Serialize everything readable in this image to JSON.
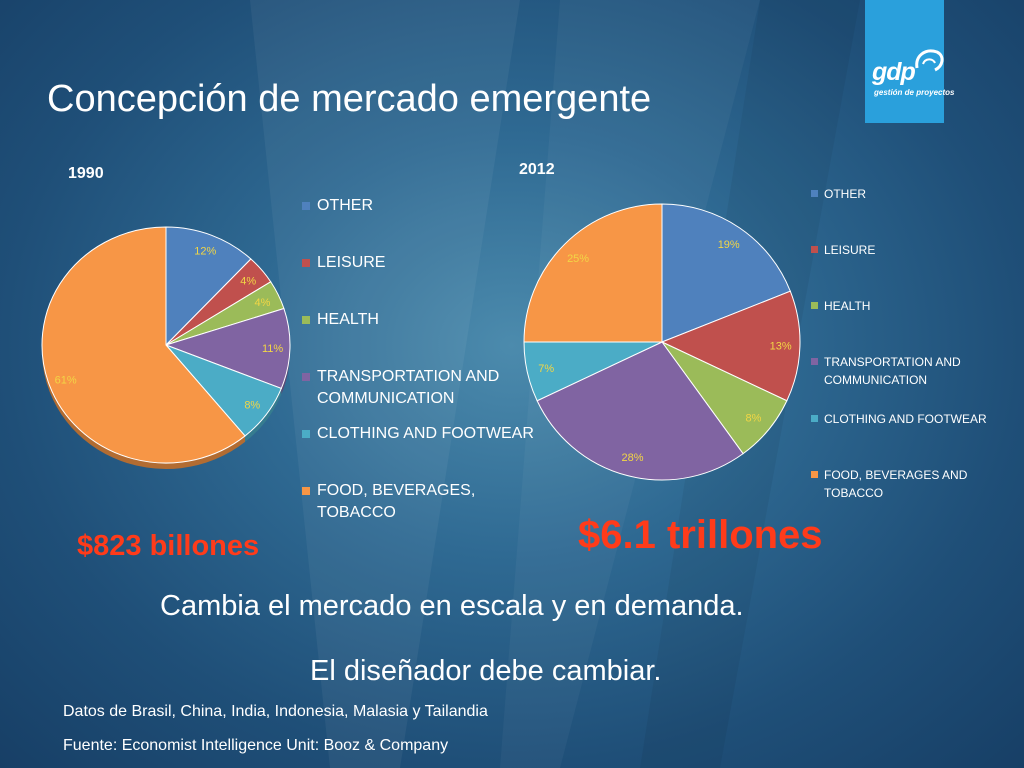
{
  "slide": {
    "title": "Concepción de mercado emergente",
    "logo": {
      "word": "gdp",
      "subtitle": "gestión de proyectos"
    },
    "total_1990": "$823 billones",
    "total_2012": "$6.1 trillones",
    "tagline_1": "Cambia el mercado en escala y en demanda.",
    "tagline_2": "El diseñador debe cambiar.",
    "note": "Datos de Brasil, China, India, Indonesia, Malasia y Tailandia",
    "source": "Fuente: Economist Intelligence Unit: Booz & Company"
  },
  "chart_data": [
    {
      "type": "pie",
      "title": "1990",
      "categories": [
        "OTHER",
        "LEISURE",
        "HEALTH",
        "TRANSPORTATION AND COMMUNICATION",
        "CLOTHING AND FOOTWEAR",
        "FOOD, BEVERAGES, TOBACCO"
      ],
      "values": [
        12,
        4,
        4,
        11,
        8,
        61
      ],
      "data_labels": [
        "12%",
        "4%",
        "4%",
        "11%",
        "8%",
        "61%"
      ],
      "colors": [
        "#4f81bd",
        "#c0504d",
        "#9bbb59",
        "#8064a2",
        "#4bacc6",
        "#f79646"
      ],
      "legend_position": "right",
      "style": "3d"
    },
    {
      "type": "pie",
      "title": "2012",
      "categories": [
        "OTHER",
        "LEISURE",
        "HEALTH",
        "TRANSPORTATION AND COMMUNICATION",
        "CLOTHING AND FOOTWEAR",
        "FOOD, BEVERAGES AND TOBACCO"
      ],
      "values": [
        19,
        13,
        8,
        28,
        7,
        25
      ],
      "data_labels": [
        "19%",
        "13%",
        "8%",
        "28%",
        "7%",
        "25%"
      ],
      "colors": [
        "#4f81bd",
        "#c0504d",
        "#9bbb59",
        "#8064a2",
        "#4bacc6",
        "#f79646"
      ],
      "legend_position": "right",
      "style": "flat"
    }
  ]
}
